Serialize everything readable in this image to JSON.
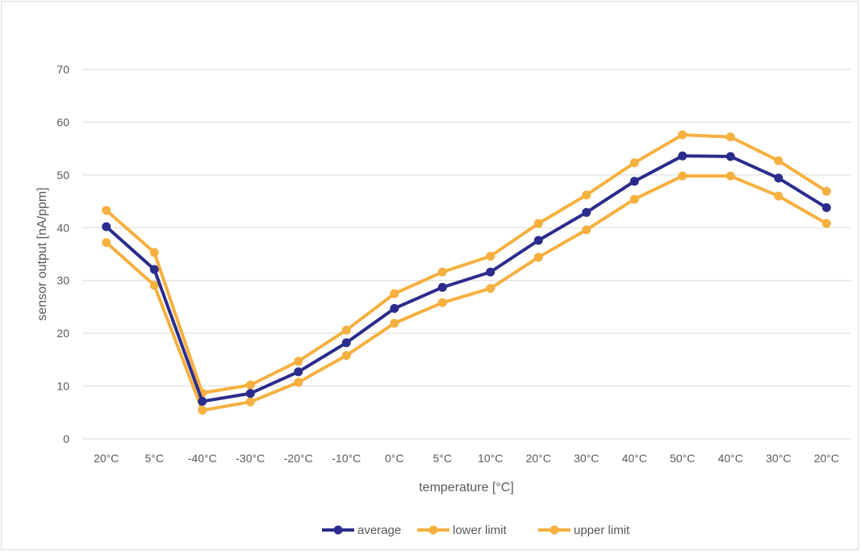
{
  "chart_data": {
    "type": "line",
    "title": "",
    "xlabel": "temperature [°C]",
    "ylabel": "sensor output [nA/ppm]",
    "ylim": [
      0,
      70
    ],
    "yticks": [
      0,
      10,
      20,
      30,
      40,
      50,
      60,
      70
    ],
    "grid": true,
    "legend_position": "bottom",
    "categories": [
      "20°C",
      "5°C",
      "-40°C",
      "-30°C",
      "-20°C",
      "-10°C",
      "0°C",
      "5°C",
      "10°C",
      "20°C",
      "30°C",
      "40°C",
      "50°C",
      "40°C",
      "30°C",
      "20°C"
    ],
    "series": [
      {
        "name": "average",
        "color": "#2b2d8c",
        "values": [
          40.2,
          32.1,
          7.1,
          8.6,
          12.7,
          18.2,
          24.7,
          28.7,
          31.6,
          37.6,
          42.9,
          48.8,
          53.6,
          53.5,
          49.4,
          43.8
        ]
      },
      {
        "name": "lower limit",
        "color": "#f5b03f",
        "values": [
          37.2,
          29.1,
          5.4,
          7.0,
          10.7,
          15.8,
          21.9,
          25.8,
          28.5,
          34.4,
          39.6,
          45.4,
          49.8,
          49.8,
          46.0,
          40.8
        ]
      },
      {
        "name": "upper limit",
        "color": "#f5b03f",
        "values": [
          43.3,
          35.3,
          8.7,
          10.2,
          14.7,
          20.6,
          27.5,
          31.6,
          34.6,
          40.8,
          46.2,
          52.3,
          57.6,
          57.2,
          52.7,
          46.9
        ]
      }
    ]
  }
}
